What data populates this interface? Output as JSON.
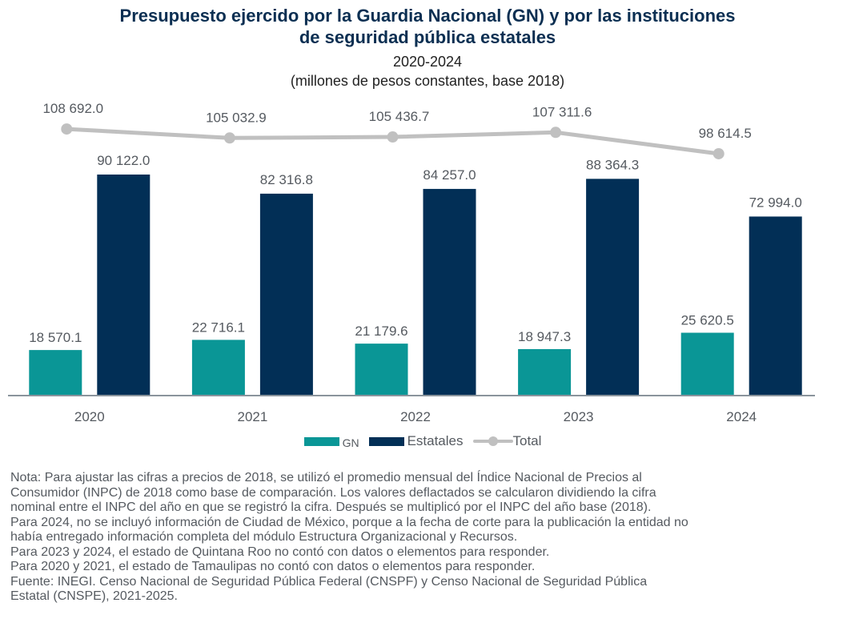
{
  "header": {
    "title_line1": "Presupuesto ejercido por la Guardia Nacional (GN) y por las instituciones",
    "title_line2": "de seguridad pública estatales",
    "period": "2020-2024",
    "units": "(millones de pesos constantes, base 2018)"
  },
  "chart_data": {
    "type": "bar",
    "title": "Presupuesto ejercido por la Guardia Nacional (GN) y por las instituciones de seguridad pública estatales",
    "subtitle": "2020-2024 (millones de pesos constantes, base 2018)",
    "xlabel": "",
    "ylabel": "",
    "categories": [
      "2020",
      "2021",
      "2022",
      "2023",
      "2024"
    ],
    "series": [
      {
        "name": "GN",
        "type": "bar",
        "color": "#0a9696",
        "values": [
          18570.1,
          22716.1,
          21179.6,
          18947.3,
          25620.5
        ],
        "labels": [
          "18 570.1",
          "22 716.1",
          "21 179.6",
          "18 947.3",
          "25 620.5"
        ]
      },
      {
        "name": "Estatales",
        "type": "bar",
        "color": "#022f56",
        "values": [
          90122.0,
          82316.8,
          84257.0,
          88364.3,
          72994.0
        ],
        "labels": [
          "90 122.0",
          "82 316.8",
          "84 257.0",
          "88 364.3",
          "72 994.0"
        ]
      },
      {
        "name": "Total",
        "type": "line",
        "color": "#c0c0c0",
        "values": [
          108692.0,
          105032.9,
          105436.7,
          107311.6,
          98614.5
        ],
        "labels": [
          "108 692.0",
          "105 032.9",
          "105 436.7",
          "107 311.6",
          "98 614.5"
        ]
      }
    ],
    "ylim": [
      0,
      120000
    ],
    "grid": false,
    "legend": "bottom",
    "legend_entries": [
      "GN",
      "Estatales",
      "Total"
    ]
  },
  "notes": [
    "Nota: Para ajustar las cifras a precios de 2018, se utilizó el promedio mensual del Índice Nacional de Precios al",
    "Consumidor (INPC) de 2018 como base de comparación. Los valores deflactados se calcularon dividiendo la cifra",
    "nominal entre el INPC del año en que se registró la cifra. Después se multiplicó por el INPC del año base (2018).",
    "Para 2024, no se incluyó información de Ciudad de México, porque a la fecha de corte para la publicación la entidad no",
    "había entregado información completa del módulo Estructura Organizacional y Recursos.",
    "Para 2023 y 2024, el estado de Quintana Roo no contó con datos o elementos para responder.",
    "Para 2020 y 2021, el estado de Tamaulipas no contó con datos o elementos para responder.",
    "Fuente: INEGI. Censo Nacional de Seguridad Pública Federal (CNSPF) y Censo Nacional de Seguridad Pública",
    "Estatal (CNSPE), 2021-2025."
  ]
}
